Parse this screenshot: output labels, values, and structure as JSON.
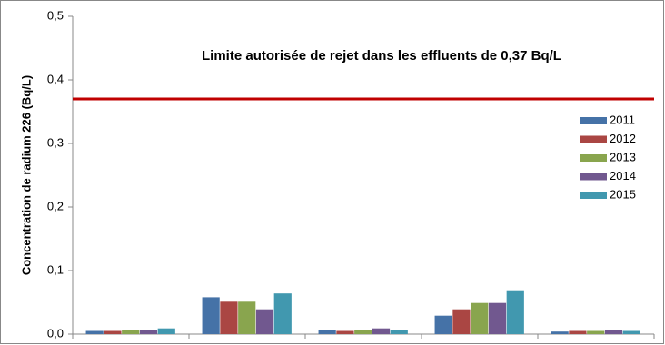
{
  "chart_data": {
    "type": "bar",
    "y_axis_label": "Concentration de radium 226 (Bq/L)",
    "categories": [
      null,
      null,
      null,
      null,
      null
    ],
    "series": [
      {
        "name": "2011",
        "color": "#4572a7",
        "values": [
          0.005,
          0.058,
          0.006,
          0.029,
          0.004
        ]
      },
      {
        "name": "2012",
        "color": "#aa4643",
        "values": [
          0.005,
          0.051,
          0.005,
          0.039,
          0.005
        ]
      },
      {
        "name": "2013",
        "color": "#89a54e",
        "values": [
          0.006,
          0.051,
          0.006,
          0.049,
          0.005
        ]
      },
      {
        "name": "2014",
        "color": "#71588f",
        "values": [
          0.007,
          0.039,
          0.009,
          0.049,
          0.006
        ]
      },
      {
        "name": "2015",
        "color": "#4198af",
        "values": [
          0.009,
          0.064,
          0.006,
          0.069,
          0.005
        ]
      }
    ],
    "reference_line": {
      "value": 0.37,
      "label": "Limite autorisée de rejet dans les effluents de 0,37 Bq/L",
      "color": "#c00000"
    },
    "ylim": [
      0,
      0.5
    ],
    "yticks": [
      {
        "value": 0,
        "label": "0,0"
      },
      {
        "value": 0.1,
        "label": "0,1"
      },
      {
        "value": 0.2,
        "label": "0,2"
      },
      {
        "value": 0.3,
        "label": "0,3"
      },
      {
        "value": 0.4,
        "label": "0,4"
      },
      {
        "value": 0.5,
        "label": "0,5"
      }
    ],
    "grid": false,
    "legend": "right"
  }
}
